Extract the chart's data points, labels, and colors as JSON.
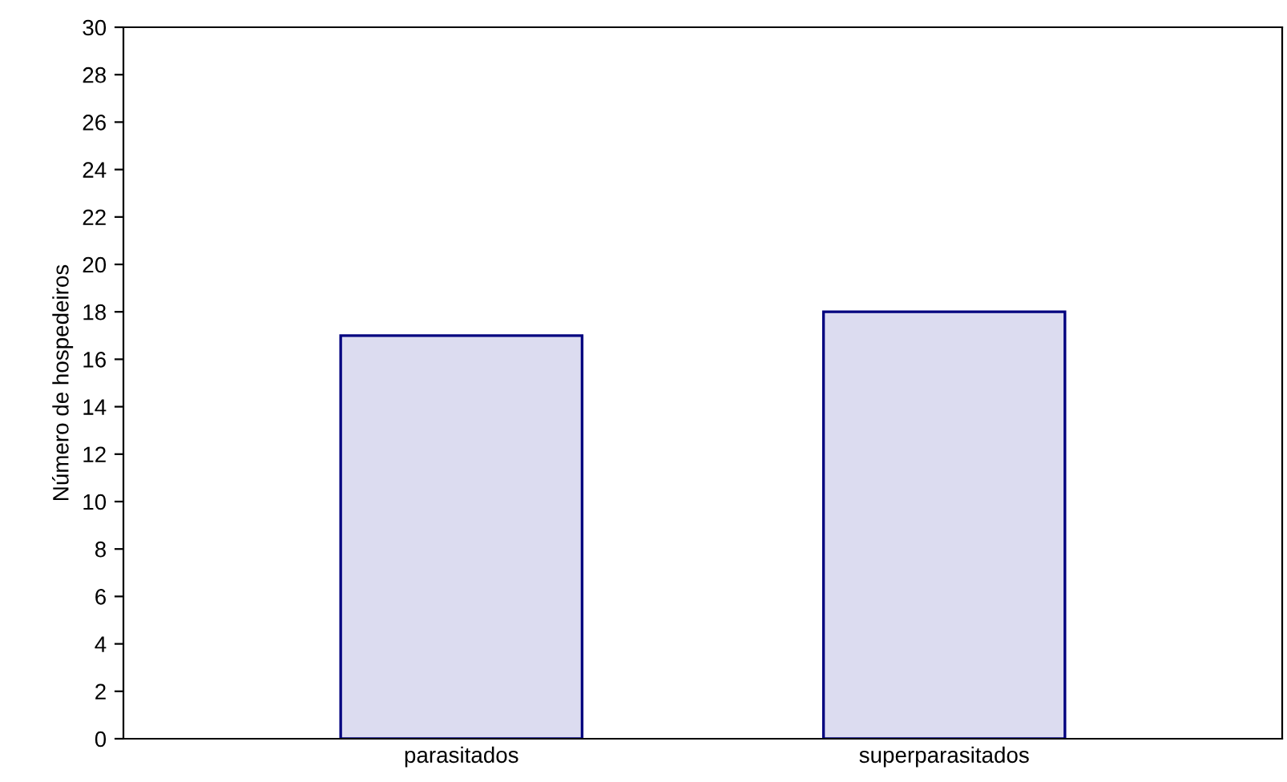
{
  "chart_data": {
    "type": "bar",
    "categories": [
      "parasitados",
      "superparasitados"
    ],
    "values": [
      17,
      18
    ],
    "color": "#dcdcf0",
    "ylabel": "Número de hospedeiros",
    "ylim": [
      0,
      30
    ],
    "yticks": [
      0,
      2,
      4,
      6,
      8,
      10,
      12,
      14,
      16,
      18,
      20,
      22,
      24,
      26,
      28,
      30
    ],
    "grid": false
  }
}
